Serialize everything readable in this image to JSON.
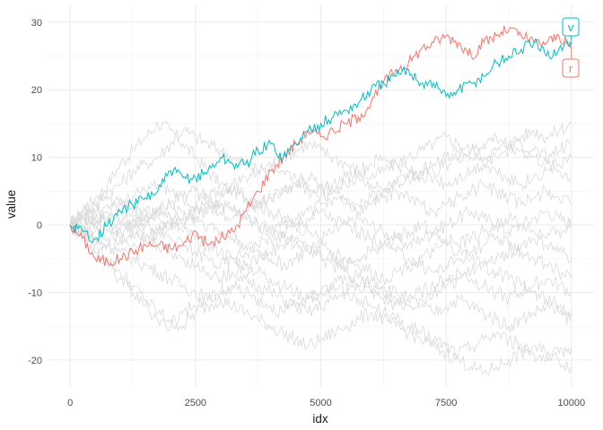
{
  "chart_data": {
    "type": "line",
    "title": "",
    "xlabel": "idx",
    "ylabel": "value",
    "xlim": [
      -450,
      10450
    ],
    "ylim": [
      -24,
      32.5
    ],
    "x_ticks": [
      0,
      2500,
      5000,
      7500,
      10000
    ],
    "x_tick_labels": [
      "0",
      "2500",
      "5000",
      "7500",
      "10000"
    ],
    "y_ticks": [
      -20,
      -10,
      0,
      10,
      20,
      30
    ],
    "y_tick_labels": [
      "-20",
      "-10",
      "0",
      "10",
      "20",
      "30"
    ],
    "grid": true,
    "legend": "none",
    "x": [
      0,
      250,
      500,
      750,
      1000,
      1250,
      1500,
      1750,
      2000,
      2250,
      2500,
      2750,
      3000,
      3250,
      3500,
      3750,
      4000,
      4250,
      4500,
      4750,
      5000,
      5250,
      5500,
      5750,
      6000,
      6250,
      6500,
      6750,
      7000,
      7250,
      7500,
      7750,
      8000,
      8250,
      8500,
      8750,
      9000,
      9250,
      9500,
      9750,
      10000
    ],
    "highlighted_series": [
      {
        "name": "r",
        "color": "#F8766D",
        "values": [
          0,
          -2,
          -5,
          -5.5,
          -5,
          -4,
          -3,
          -3,
          -3.5,
          -3,
          -1,
          -3,
          -2,
          -1,
          2,
          5,
          8,
          10,
          12,
          14,
          13,
          14,
          15,
          16,
          18,
          21,
          23,
          24,
          26,
          27,
          28,
          27,
          25,
          27,
          28,
          29,
          28,
          27,
          27,
          28,
          26
        ]
      },
      {
        "name": "v",
        "color": "#00BFC4",
        "values": [
          0,
          -1,
          -2,
          0,
          2,
          3,
          4,
          5,
          8,
          7,
          7,
          8,
          10,
          9,
          9,
          11,
          12,
          10,
          12,
          14,
          15,
          16,
          17,
          18,
          20,
          21,
          22,
          23,
          21,
          21,
          19,
          20,
          21,
          22,
          24,
          25,
          26,
          27,
          25,
          26,
          27
        ]
      }
    ],
    "background_series": [
      {
        "values": [
          0,
          2,
          4,
          6,
          9,
          11,
          13,
          15,
          14,
          12,
          10,
          8,
          6,
          5,
          4,
          3,
          2,
          1,
          0,
          -1,
          -2,
          -1,
          0,
          1,
          0,
          -1,
          -2,
          -3,
          -2,
          -1,
          0,
          1,
          2,
          1,
          0,
          -1,
          0,
          1,
          2,
          1,
          0
        ]
      },
      {
        "values": [
          0,
          1,
          3,
          5,
          6,
          8,
          9,
          10,
          12,
          14,
          13,
          12,
          11,
          10,
          9,
          8,
          9,
          10,
          11,
          12,
          11,
          10,
          9,
          8,
          7,
          8,
          9,
          10,
          11,
          12,
          13,
          12,
          11,
          10,
          11,
          12,
          13,
          14,
          13,
          14,
          15
        ]
      },
      {
        "values": [
          0,
          -1,
          -3,
          -5,
          -7,
          -9,
          -11,
          -13,
          -14,
          -15,
          -13,
          -12,
          -11,
          -12,
          -13,
          -14,
          -15,
          -16,
          -17,
          -18,
          -17,
          -16,
          -15,
          -14,
          -13,
          -14,
          -15,
          -16,
          -17,
          -18,
          -19,
          -20,
          -21,
          -22,
          -21,
          -20,
          -19,
          -18,
          -19,
          -20,
          -21
        ]
      },
      {
        "values": [
          0,
          -1,
          -2,
          -3,
          -4,
          -5,
          -6,
          -7,
          -8,
          -9,
          -10,
          -11,
          -10,
          -9,
          -8,
          -9,
          -10,
          -11,
          -12,
          -13,
          -12,
          -11,
          -10,
          -9,
          -8,
          -9,
          -10,
          -11,
          -12,
          -13,
          -12,
          -11,
          -12,
          -13,
          -14,
          -15,
          -14,
          -13,
          -12,
          -13,
          -14
        ]
      },
      {
        "values": [
          0,
          1,
          0,
          1,
          2,
          1,
          0,
          -1,
          0,
          1,
          2,
          3,
          4,
          5,
          4,
          3,
          4,
          5,
          6,
          5,
          4,
          5,
          6,
          7,
          6,
          5,
          6,
          7,
          8,
          7,
          6,
          7,
          8,
          9,
          8,
          7,
          6,
          7,
          8,
          9,
          10
        ]
      },
      {
        "values": [
          0,
          0,
          -1,
          -2,
          -1,
          0,
          1,
          2,
          3,
          2,
          1,
          0,
          -1,
          -2,
          -3,
          -4,
          -5,
          -6,
          -5,
          -4,
          -3,
          -4,
          -5,
          -6,
          -7,
          -8,
          -7,
          -6,
          -5,
          -4,
          -3,
          -4,
          -5,
          -6,
          -5,
          -4,
          -3,
          -2,
          -3,
          -4,
          -5
        ]
      },
      {
        "values": [
          0,
          1,
          2,
          1,
          0,
          -1,
          -2,
          -1,
          0,
          1,
          2,
          3,
          2,
          1,
          2,
          3,
          4,
          5,
          6,
          7,
          6,
          5,
          4,
          3,
          4,
          5,
          6,
          7,
          8,
          9,
          10,
          11,
          10,
          9,
          10,
          11,
          12,
          11,
          10,
          11,
          12
        ]
      },
      {
        "values": [
          0,
          -1,
          -2,
          -3,
          -2,
          -1,
          -2,
          -3,
          -4,
          -5,
          -6,
          -7,
          -8,
          -7,
          -6,
          -5,
          -4,
          -3,
          -2,
          -3,
          -4,
          -5,
          -6,
          -5,
          -4,
          -3,
          -2,
          -1,
          0,
          -1,
          -2,
          -3,
          -2,
          -1,
          0,
          1,
          0,
          -1,
          -2,
          -1,
          0
        ]
      },
      {
        "values": [
          0,
          1,
          2,
          3,
          4,
          3,
          2,
          1,
          0,
          -1,
          -2,
          -3,
          -4,
          -5,
          -6,
          -7,
          -8,
          -9,
          -10,
          -11,
          -10,
          -9,
          -8,
          -9,
          -10,
          -11,
          -12,
          -11,
          -10,
          -9,
          -8,
          -7,
          -8,
          -9,
          -10,
          -11,
          -10,
          -9,
          -8,
          -9,
          -10
        ]
      },
      {
        "values": [
          0,
          0,
          1,
          0,
          -1,
          0,
          1,
          2,
          1,
          0,
          1,
          2,
          3,
          2,
          1,
          0,
          -1,
          0,
          1,
          2,
          3,
          4,
          3,
          2,
          3,
          4,
          5,
          4,
          3,
          2,
          3,
          4,
          5,
          6,
          5,
          4,
          3,
          4,
          5,
          4,
          3
        ]
      },
      {
        "values": [
          0,
          -2,
          -4,
          -6,
          -8,
          -10,
          -12,
          -14,
          -15,
          -13,
          -12,
          -11,
          -10,
          -9,
          -10,
          -11,
          -12,
          -13,
          -12,
          -11,
          -10,
          -9,
          -10,
          -11,
          -12,
          -13,
          -14,
          -15,
          -16,
          -17,
          -18,
          -19,
          -18,
          -17,
          -16,
          -17,
          -18,
          -19,
          -20,
          -19,
          -18
        ]
      },
      {
        "values": [
          0,
          1,
          1,
          2,
          3,
          4,
          5,
          6,
          5,
          4,
          3,
          4,
          5,
          6,
          7,
          8,
          9,
          8,
          7,
          6,
          5,
          6,
          7,
          8,
          9,
          10,
          9,
          8,
          7,
          8,
          9,
          10,
          11,
          12,
          13,
          12,
          11,
          10,
          9,
          8,
          7
        ]
      },
      {
        "values": [
          0,
          -1,
          0,
          -1,
          -2,
          -3,
          -2,
          -1,
          -2,
          -3,
          -4,
          -5,
          -6,
          -5,
          -4,
          -3,
          -2,
          -1,
          0,
          1,
          2,
          1,
          0,
          -1,
          -2,
          -3,
          -4,
          -5,
          -6,
          -7,
          -6,
          -5,
          -4,
          -3,
          -2,
          -3,
          -4,
          -5,
          -6,
          -7,
          -8
        ]
      },
      {
        "values": [
          0,
          2,
          3,
          4,
          3,
          2,
          1,
          2,
          3,
          4,
          5,
          4,
          3,
          2,
          1,
          0,
          -1,
          -2,
          -3,
          -4,
          -5,
          -6,
          -7,
          -8,
          -9,
          -10,
          -11,
          -12,
          -11,
          -10,
          -9,
          -8,
          -7,
          -6,
          -7,
          -8,
          -9,
          -10,
          -11,
          -12,
          -13
        ]
      }
    ]
  }
}
